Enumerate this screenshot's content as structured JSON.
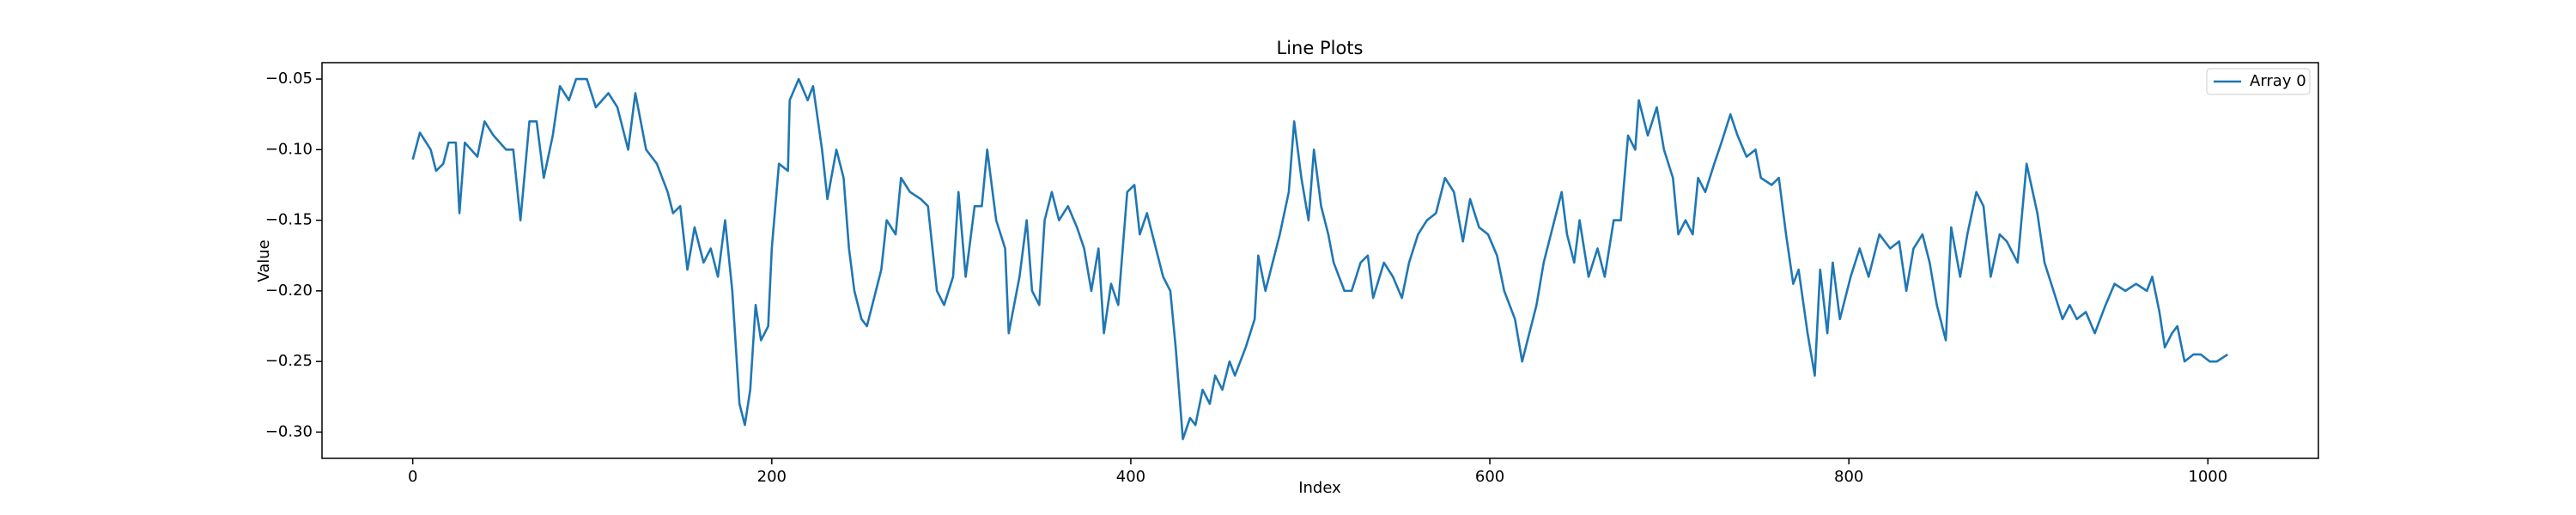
{
  "chart_data": {
    "type": "line",
    "title": "Line Plots",
    "x_label": "Index",
    "y_label": "Value",
    "x": [
      0,
      4,
      10,
      13,
      17,
      20,
      24,
      26,
      29,
      36,
      40,
      45,
      52,
      56,
      60,
      65,
      69,
      73,
      78,
      82,
      87,
      91,
      97,
      102,
      109,
      114,
      120,
      124,
      130,
      136,
      142,
      145,
      149,
      153,
      157,
      162,
      166,
      170,
      174,
      178,
      182,
      185,
      188,
      191,
      194,
      198,
      200,
      204,
      209,
      210,
      215,
      220,
      223,
      228,
      231,
      236,
      240,
      243,
      246,
      250,
      253,
      256,
      261,
      264,
      269,
      272,
      277,
      283,
      287,
      292,
      296,
      301,
      304,
      308,
      313,
      317,
      320,
      325,
      330,
      332,
      338,
      342,
      345,
      349,
      352,
      356,
      360,
      365,
      370,
      374,
      378,
      382,
      385,
      389,
      393,
      398,
      402,
      405,
      409,
      414,
      418,
      422,
      425,
      429,
      433,
      436,
      440,
      444,
      447,
      451,
      455,
      458,
      464,
      469,
      471,
      475,
      479,
      483,
      488,
      491,
      495,
      499,
      502,
      506,
      510,
      513,
      519,
      523,
      528,
      532,
      535,
      541,
      546,
      551,
      555,
      560,
      565,
      570,
      575,
      580,
      585,
      589,
      594,
      599,
      604,
      608,
      614,
      618,
      621,
      626,
      630,
      636,
      640,
      643,
      647,
      650,
      655,
      660,
      664,
      669,
      673,
      677,
      681,
      683,
      688,
      693,
      697,
      702,
      705,
      709,
      713,
      716,
      720,
      725,
      729,
      734,
      738,
      743,
      748,
      751,
      757,
      761,
      765,
      769,
      772,
      777,
      781,
      784,
      788,
      791,
      795,
      801,
      806,
      811,
      817,
      823,
      828,
      832,
      836,
      841,
      845,
      849,
      854,
      857,
      862,
      866,
      871,
      875,
      879,
      884,
      888,
      894,
      899,
      905,
      909,
      914,
      919,
      923,
      927,
      932,
      937,
      943,
      948,
      954,
      960,
      966,
      969,
      973,
      976,
      980,
      983,
      987,
      992,
      996,
      1001,
      1005,
      1011
    ],
    "series": [
      {
        "name": "Array 0",
        "color": "#1f77b4",
        "values": [
          -0.107,
          -0.088,
          -0.1,
          -0.115,
          -0.11,
          -0.095,
          -0.095,
          -0.145,
          -0.095,
          -0.105,
          -0.08,
          -0.09,
          -0.1,
          -0.1,
          -0.15,
          -0.08,
          -0.08,
          -0.12,
          -0.09,
          -0.055,
          -0.065,
          -0.05,
          -0.05,
          -0.07,
          -0.06,
          -0.07,
          -0.1,
          -0.06,
          -0.1,
          -0.11,
          -0.13,
          -0.145,
          -0.14,
          -0.185,
          -0.155,
          -0.18,
          -0.17,
          -0.19,
          -0.15,
          -0.2,
          -0.28,
          -0.295,
          -0.27,
          -0.21,
          -0.235,
          -0.225,
          -0.17,
          -0.11,
          -0.115,
          -0.065,
          -0.05,
          -0.065,
          -0.055,
          -0.1,
          -0.135,
          -0.1,
          -0.12,
          -0.17,
          -0.2,
          -0.22,
          -0.225,
          -0.21,
          -0.185,
          -0.15,
          -0.16,
          -0.12,
          -0.13,
          -0.135,
          -0.14,
          -0.2,
          -0.21,
          -0.19,
          -0.13,
          -0.19,
          -0.14,
          -0.14,
          -0.1,
          -0.15,
          -0.17,
          -0.23,
          -0.19,
          -0.15,
          -0.2,
          -0.21,
          -0.15,
          -0.13,
          -0.15,
          -0.14,
          -0.155,
          -0.17,
          -0.2,
          -0.17,
          -0.23,
          -0.195,
          -0.21,
          -0.13,
          -0.125,
          -0.16,
          -0.145,
          -0.17,
          -0.19,
          -0.2,
          -0.24,
          -0.305,
          -0.29,
          -0.295,
          -0.27,
          -0.28,
          -0.26,
          -0.27,
          -0.25,
          -0.26,
          -0.24,
          -0.22,
          -0.175,
          -0.2,
          -0.18,
          -0.16,
          -0.13,
          -0.08,
          -0.12,
          -0.15,
          -0.1,
          -0.14,
          -0.16,
          -0.18,
          -0.2,
          -0.2,
          -0.18,
          -0.175,
          -0.205,
          -0.18,
          -0.19,
          -0.205,
          -0.18,
          -0.16,
          -0.15,
          -0.145,
          -0.12,
          -0.13,
          -0.165,
          -0.135,
          -0.155,
          -0.16,
          -0.175,
          -0.2,
          -0.22,
          -0.25,
          -0.235,
          -0.21,
          -0.18,
          -0.15,
          -0.13,
          -0.16,
          -0.18,
          -0.15,
          -0.19,
          -0.17,
          -0.19,
          -0.15,
          -0.15,
          -0.09,
          -0.1,
          -0.065,
          -0.09,
          -0.07,
          -0.1,
          -0.12,
          -0.16,
          -0.15,
          -0.16,
          -0.12,
          -0.13,
          -0.11,
          -0.095,
          -0.075,
          -0.09,
          -0.105,
          -0.1,
          -0.12,
          -0.125,
          -0.12,
          -0.16,
          -0.195,
          -0.185,
          -0.23,
          -0.26,
          -0.185,
          -0.23,
          -0.18,
          -0.22,
          -0.19,
          -0.17,
          -0.19,
          -0.16,
          -0.17,
          -0.165,
          -0.2,
          -0.17,
          -0.16,
          -0.18,
          -0.21,
          -0.235,
          -0.155,
          -0.19,
          -0.16,
          -0.13,
          -0.14,
          -0.19,
          -0.16,
          -0.165,
          -0.18,
          -0.11,
          -0.145,
          -0.18,
          -0.2,
          -0.22,
          -0.21,
          -0.22,
          -0.215,
          -0.23,
          -0.21,
          -0.195,
          -0.2,
          -0.195,
          -0.2,
          -0.19,
          -0.215,
          -0.24,
          -0.23,
          -0.225,
          -0.25,
          -0.245,
          -0.245,
          -0.25,
          -0.25,
          -0.245
        ]
      }
    ],
    "xlim": [
      -50.55,
      1061.55
    ],
    "ylim": [
      -0.3186,
      -0.0384
    ],
    "xticks": [
      0,
      200,
      400,
      600,
      800,
      1000
    ],
    "yticks": [
      {
        "value": -0.3,
        "label": "−0.30"
      },
      {
        "value": -0.25,
        "label": "−0.25"
      },
      {
        "value": -0.2,
        "label": "−0.20"
      },
      {
        "value": -0.15,
        "label": "−0.15"
      },
      {
        "value": -0.1,
        "label": "−0.10"
      },
      {
        "value": -0.05,
        "label": "−0.05"
      }
    ],
    "legend": "upper right"
  }
}
